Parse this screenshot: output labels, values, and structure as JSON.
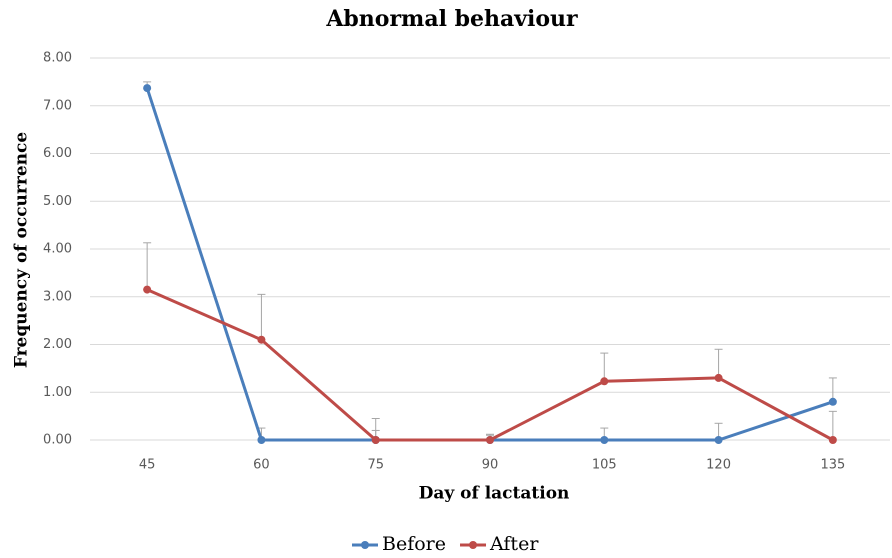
{
  "chart_data": {
    "type": "line",
    "title": "Abnormal behaviour",
    "x_label": "Day of lactation",
    "y_label": "Frequency of occurrence",
    "categories": [
      "45",
      "60",
      "75",
      "90",
      "105",
      "120",
      "135"
    ],
    "series": [
      {
        "name": "Before",
        "color": "#4a7ebb",
        "values": [
          7.37,
          0,
          0,
          0,
          0,
          0,
          0.8
        ],
        "errors": [
          0.13,
          0.25,
          0.2,
          0.1,
          0.25,
          0.35,
          0.5
        ]
      },
      {
        "name": "After",
        "color": "#be4b48",
        "values": [
          3.15,
          2.1,
          0,
          0,
          1.23,
          1.3,
          0
        ],
        "errors": [
          0.98,
          0.95,
          0.45,
          0.12,
          0.59,
          0.6,
          0.6
        ]
      }
    ],
    "ylim": [
      0,
      8
    ],
    "yticks": [
      {
        "value": 0,
        "label": "0.00"
      },
      {
        "value": 1,
        "label": "1.00"
      },
      {
        "value": 2,
        "label": "2.00"
      },
      {
        "value": 3,
        "label": "3.00"
      },
      {
        "value": 4,
        "label": "4.00"
      },
      {
        "value": 5,
        "label": "5.00"
      },
      {
        "value": 6,
        "label": "6.00"
      },
      {
        "value": 7,
        "label": "7.00"
      },
      {
        "value": 8,
        "label": "8.00"
      }
    ],
    "grid": true,
    "legend": "bottom"
  }
}
